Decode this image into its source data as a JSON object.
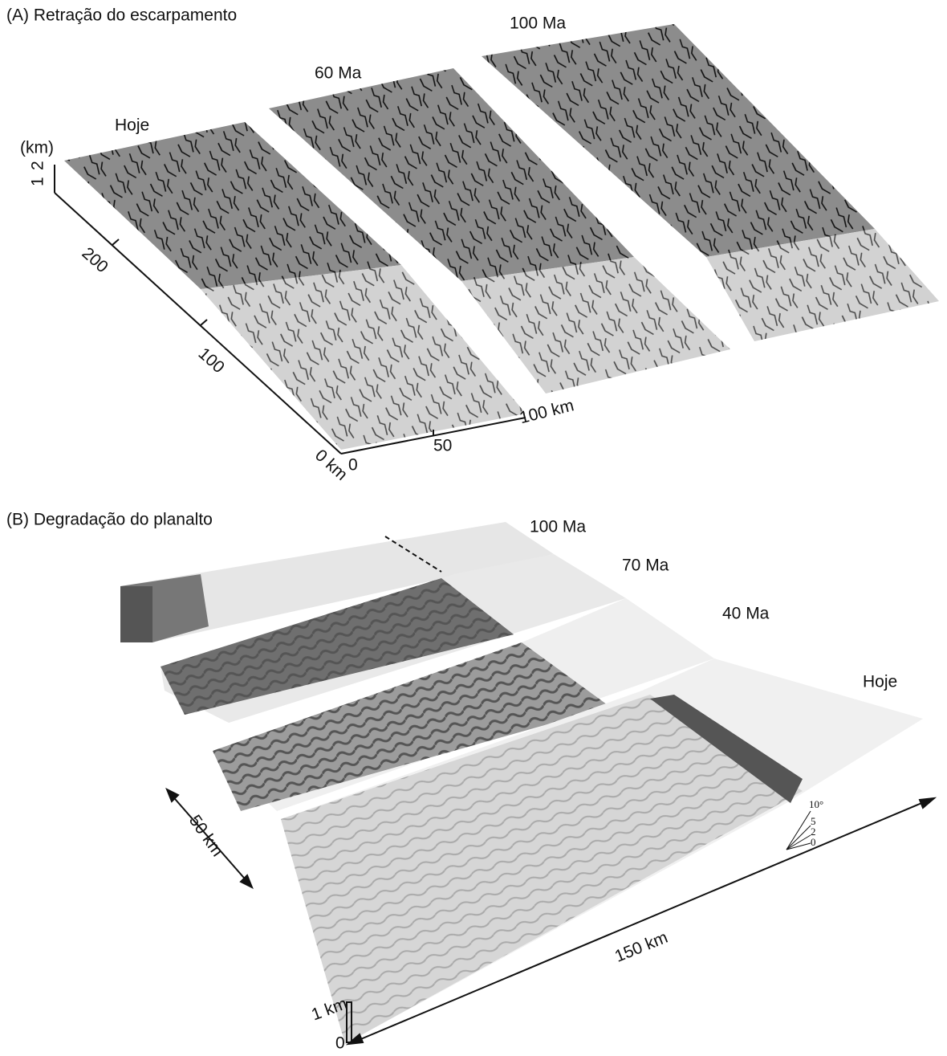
{
  "panels": [
    {
      "title": "(A) Retração do escarpamento",
      "slab_labels": [
        "100 Ma",
        "60 Ma",
        "Hoje"
      ],
      "height_axis": {
        "unit": "(km)",
        "ticks": [
          "1",
          "2"
        ]
      },
      "length_axis": [
        "200",
        "100",
        "0 km"
      ],
      "width_axis": [
        "0",
        "50",
        "100 km"
      ]
    },
    {
      "title": "(B) Degradação do planalto",
      "slab_labels": [
        "100 Ma",
        "70 Ma",
        "40 Ma",
        "Hoje"
      ],
      "width_scale": "50 km",
      "length_scale": "150 km",
      "height_scale": [
        "1 km",
        "0"
      ],
      "slope_scale": [
        "10°",
        "5",
        "2",
        "0"
      ]
    }
  ]
}
